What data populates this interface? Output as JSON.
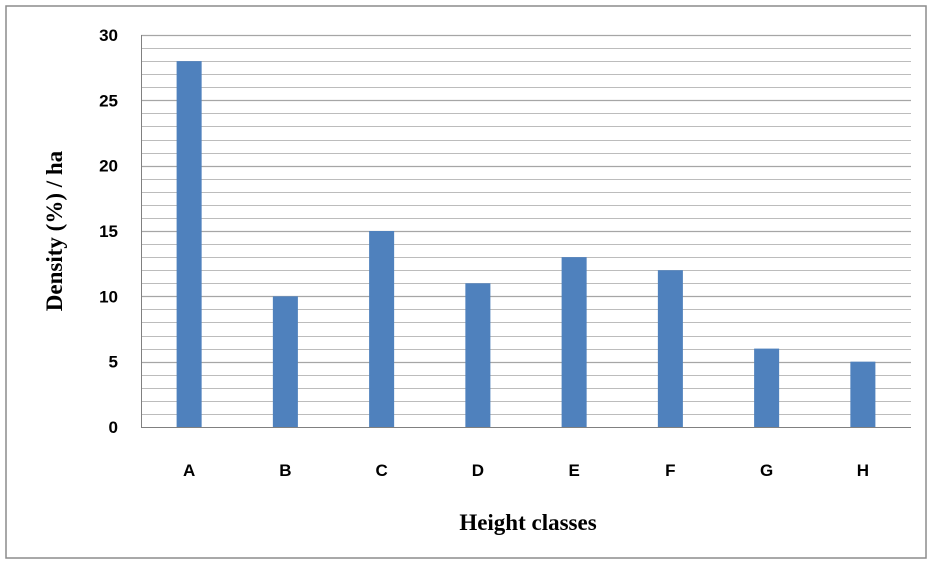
{
  "chart_data": {
    "type": "bar",
    "title": "",
    "xlabel": "Height  classes",
    "ylabel": "Density (%) / ha",
    "categories": [
      "A",
      "B",
      "C",
      "D",
      "E",
      "F",
      "G",
      "H"
    ],
    "values": [
      28,
      10,
      15,
      11,
      13,
      12,
      6,
      5
    ],
    "ylim": [
      0,
      30
    ],
    "yticks": [
      "0",
      "5",
      "10",
      "15",
      "20",
      "25",
      "30"
    ],
    "major_step": 5,
    "minor_step": 1,
    "grid": true,
    "legend": "none",
    "bar_color": "#4F81BD",
    "gridline_color": "#A6A6A6"
  }
}
